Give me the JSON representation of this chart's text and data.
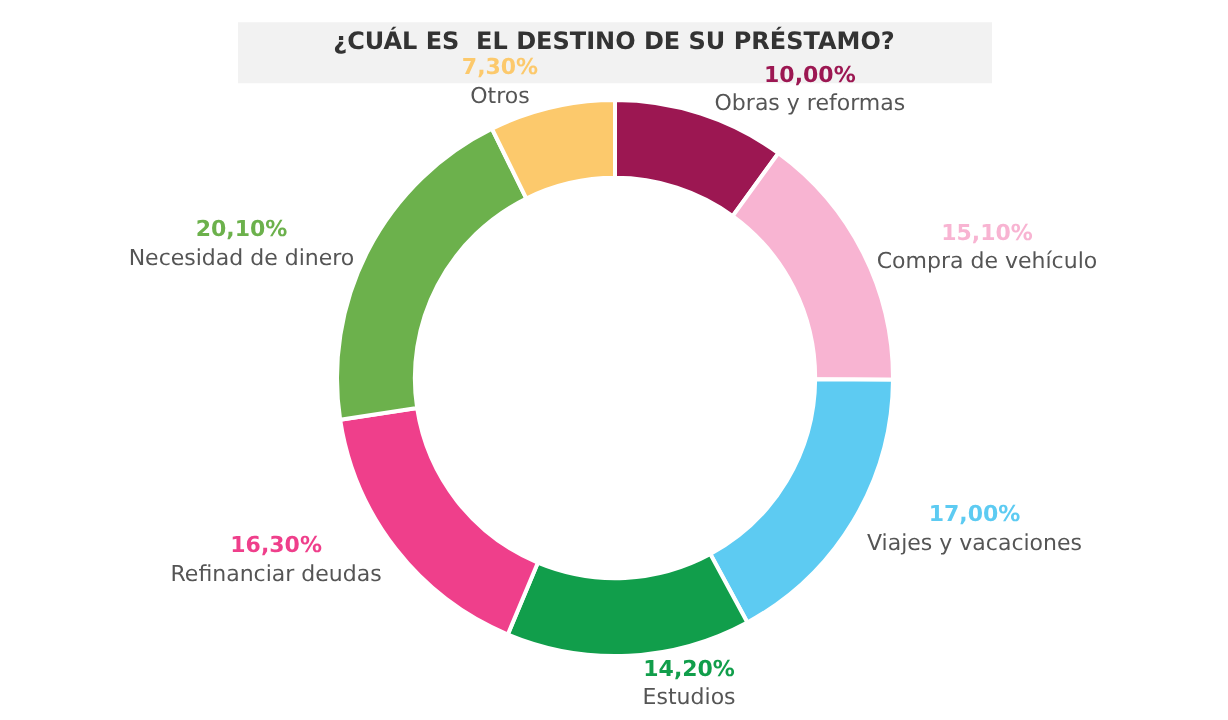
{
  "chart_data": {
    "type": "donut",
    "title": "¿CUÁL ES  EL DESTINO DE SU PRÉSTAMO?",
    "categories": [
      "Obras y reformas",
      "Compra de vehículo",
      "Viajes y vacaciones",
      "Estudios",
      "Refinanciar deudas",
      "Necesidad de dinero",
      "Otros"
    ],
    "values": [
      10.0,
      15.1,
      17.0,
      14.2,
      16.3,
      20.1,
      7.3
    ],
    "value_labels": [
      "10,00%",
      "15,10%",
      "17,00%",
      "14,20%",
      "16,30%",
      "20,10%",
      "7,30%"
    ],
    "colors": [
      "#9c1752",
      "#f8b4d2",
      "#5dcbf2",
      "#119e4b",
      "#ef3f8b",
      "#6cb14c",
      "#fcc96c"
    ],
    "legend": false
  }
}
